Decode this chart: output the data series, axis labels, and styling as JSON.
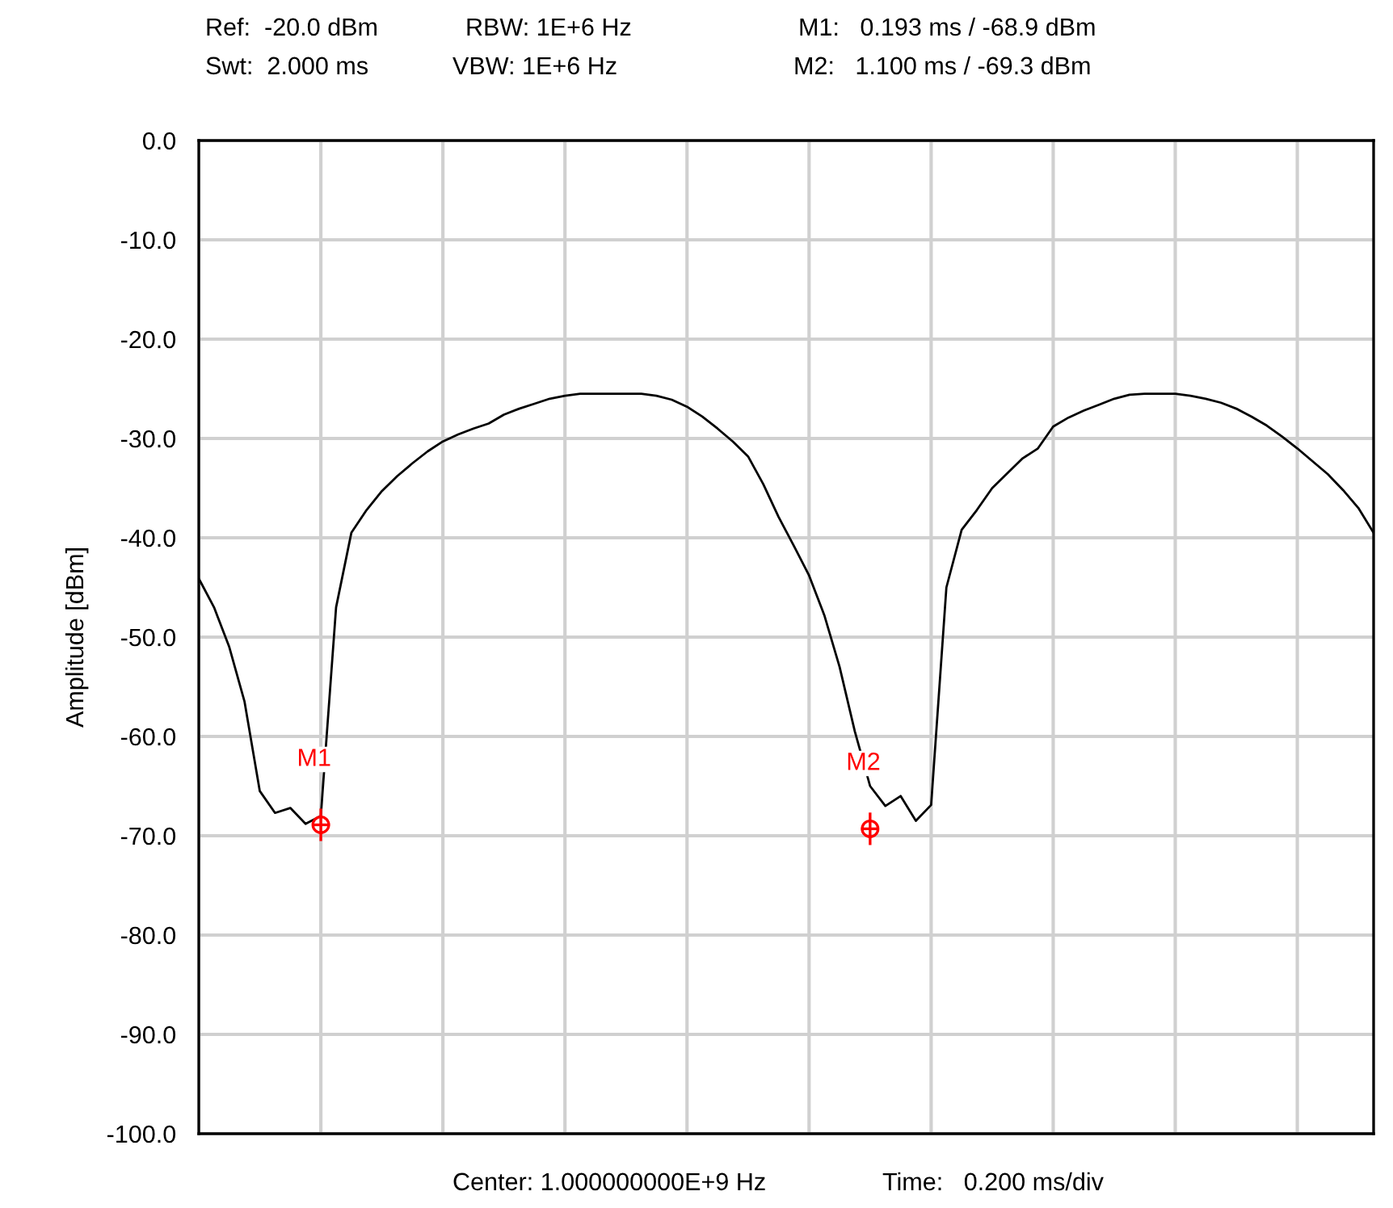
{
  "chart_data": {
    "type": "line",
    "ylabel": "Amplitude [dBm]",
    "annotations": [
      "Ref:  -20.0 dBm",
      "RBW: 1E+6 Hz",
      "M1:   0.193 ms / -68.9 dBm",
      "Swt:  2.000 ms",
      "VBW: 1E+6 Hz",
      "M2:   1.100 ms / -69.3 dBm",
      "Center: 1.000000000E+9 Hz",
      "Time:   0.200 ms/div"
    ],
    "categories": [
      null,
      null,
      null,
      null,
      null,
      null,
      null,
      null,
      null,
      null,
      null,
      null,
      null,
      null,
      null,
      null,
      null,
      null,
      null,
      null,
      null,
      null,
      null,
      null,
      null,
      null,
      null,
      null,
      null,
      null,
      null,
      null,
      null,
      null,
      null,
      null,
      null,
      null,
      null,
      null,
      null,
      null,
      null,
      null,
      null,
      null,
      null,
      null,
      null,
      null,
      null,
      null,
      null,
      null,
      null,
      null,
      null,
      null,
      null,
      null,
      null,
      null,
      null,
      null,
      null,
      null,
      null,
      null,
      null,
      null,
      null,
      null,
      null,
      null,
      null,
      null,
      null,
      null
    ],
    "series": [
      {
        "color": "#000000",
        "values": [
          -44.1,
          -47.0,
          -51.0,
          -56.5,
          -65.5,
          -67.7,
          -67.2,
          -68.8,
          -68.0,
          -47.0,
          -39.5,
          -37.2,
          -35.3,
          -33.8,
          -32.5,
          -31.3,
          -30.3,
          -29.6,
          -29.0,
          -28.5,
          -27.6,
          -27.0,
          -26.5,
          -26.0,
          -25.7,
          -25.5,
          -25.5,
          -25.5,
          -25.5,
          -25.5,
          -25.7,
          -26.1,
          -26.8,
          -27.8,
          -29.0,
          -30.3,
          -31.8,
          -34.6,
          -37.9,
          -40.8,
          -43.8,
          -47.8,
          -53.0,
          -59.5,
          -65.0,
          -67.0,
          -66.0,
          -68.5,
          -66.9,
          -45.0,
          -39.2,
          -37.2,
          -35.0,
          -33.5,
          -32.0,
          -31.0,
          -28.8,
          -27.9,
          -27.2,
          -26.6,
          -26.0,
          -25.6,
          -25.5,
          -25.5,
          -25.5,
          -25.7,
          -26.0,
          -26.4,
          -27.0,
          -27.8,
          -28.7,
          -29.8,
          -31.0,
          -32.3,
          -33.6,
          -35.2,
          -37.0,
          -39.5
        ]
      },
      {
        "type": "scatter",
        "name": "M1",
        "color": "#ff0000",
        "marker": "circle",
        "values": [
          null,
          null,
          null,
          null,
          null,
          null,
          null,
          null,
          -68.9,
          null,
          null,
          null,
          null,
          null,
          null,
          null,
          null,
          null,
          null,
          null,
          null,
          null,
          null,
          null,
          null,
          null,
          null,
          null,
          null,
          null,
          null,
          null,
          null,
          null,
          null,
          null,
          null,
          null,
          null,
          null,
          null,
          null,
          null,
          null,
          null,
          null,
          null,
          null,
          null,
          null,
          null,
          null,
          null,
          null,
          null,
          null,
          null,
          null,
          null,
          null,
          null,
          null,
          null,
          null,
          null,
          null,
          null,
          null,
          null,
          null,
          null,
          null,
          null,
          null,
          null,
          null,
          null,
          null
        ]
      },
      {
        "type": "scatter",
        "name": "M2",
        "color": "#ff0000",
        "marker": "circle",
        "values": [
          null,
          null,
          null,
          null,
          null,
          null,
          null,
          null,
          null,
          null,
          null,
          null,
          null,
          null,
          null,
          null,
          null,
          null,
          null,
          null,
          null,
          null,
          null,
          null,
          null,
          null,
          null,
          null,
          null,
          null,
          null,
          null,
          null,
          null,
          null,
          null,
          null,
          null,
          null,
          null,
          null,
          null,
          null,
          null,
          -69.3,
          null,
          null,
          null,
          null,
          null,
          null,
          null,
          null,
          null,
          null,
          null,
          null,
          null,
          null,
          null,
          null,
          null,
          null,
          null,
          null,
          null,
          null,
          null,
          null,
          null,
          null,
          null,
          null,
          null,
          null,
          null,
          null,
          null
        ]
      }
    ],
    "ylim": [
      -100,
      0
    ],
    "yticks": [
      {
        "value": 0,
        "label": "0.0"
      },
      {
        "value": -10,
        "label": "-10.0"
      },
      {
        "value": -20,
        "label": "-20.0"
      },
      {
        "value": -30,
        "label": "-30.0"
      },
      {
        "value": -40,
        "label": "-40.0"
      },
      {
        "value": -50,
        "label": "-50.0"
      },
      {
        "value": -60,
        "label": "-60.0"
      },
      {
        "value": -70,
        "label": "-70.0"
      },
      {
        "value": -80,
        "label": "-80.0"
      },
      {
        "value": -90,
        "label": "-90.0"
      },
      {
        "value": -100,
        "label": "-100.0"
      }
    ],
    "tick_labels": "y",
    "grid": true,
    "marker": "none",
    "line_style": "solid"
  }
}
